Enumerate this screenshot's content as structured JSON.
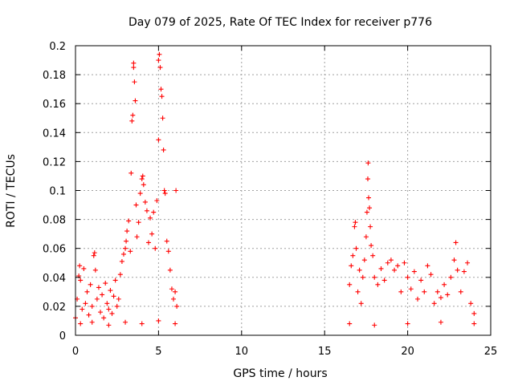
{
  "chart_data": {
    "type": "scatter",
    "title": "Day 079 of 2025, Rate Of TEC Index for receiver p776",
    "xlabel": "GPS time / hours",
    "ylabel": "ROTI / TECUs",
    "xlim": [
      0,
      25
    ],
    "ylim": [
      0,
      0.2
    ],
    "xticks": [
      0,
      5,
      10,
      15,
      20,
      25
    ],
    "xtick_labels": [
      "0",
      "5",
      "10",
      "15",
      "20",
      "25"
    ],
    "yticks": [
      0,
      0.02,
      0.04,
      0.06,
      0.08,
      0.1,
      0.12,
      0.14,
      0.16,
      0.18,
      0.2
    ],
    "ytick_labels": [
      "0",
      "0.02",
      "0.04",
      "0.06",
      "0.08",
      "0.1",
      "0.12",
      "0.14",
      "0.16",
      "0.18",
      "0.2"
    ],
    "grid": true,
    "marker": "+",
    "color": "#ff0000",
    "series": [
      {
        "name": "ROTI",
        "points": [
          [
            0.0,
            0.012
          ],
          [
            0.1,
            0.025
          ],
          [
            0.2,
            0.041
          ],
          [
            0.25,
            0.048
          ],
          [
            0.3,
            0.038
          ],
          [
            0.4,
            0.018
          ],
          [
            0.5,
            0.046
          ],
          [
            0.6,
            0.022
          ],
          [
            0.7,
            0.03
          ],
          [
            0.8,
            0.014
          ],
          [
            0.9,
            0.035
          ],
          [
            1.0,
            0.02
          ],
          [
            1.1,
            0.055
          ],
          [
            1.15,
            0.057
          ],
          [
            1.2,
            0.045
          ],
          [
            1.3,
            0.025
          ],
          [
            1.4,
            0.033
          ],
          [
            1.5,
            0.016
          ],
          [
            1.6,
            0.028
          ],
          [
            1.7,
            0.012
          ],
          [
            1.8,
            0.036
          ],
          [
            1.9,
            0.022
          ],
          [
            2.0,
            0.018
          ],
          [
            2.1,
            0.031
          ],
          [
            2.2,
            0.015
          ],
          [
            2.3,
            0.027
          ],
          [
            2.4,
            0.038
          ],
          [
            2.5,
            0.02
          ],
          [
            2.6,
            0.025
          ],
          [
            2.7,
            0.042
          ],
          [
            2.8,
            0.051
          ],
          [
            2.9,
            0.056
          ],
          [
            3.0,
            0.06
          ],
          [
            3.05,
            0.065
          ],
          [
            3.1,
            0.072
          ],
          [
            3.2,
            0.079
          ],
          [
            3.3,
            0.058
          ],
          [
            3.35,
            0.112
          ],
          [
            3.4,
            0.148
          ],
          [
            3.45,
            0.152
          ],
          [
            3.5,
            0.185
          ],
          [
            3.5,
            0.188
          ],
          [
            3.55,
            0.175
          ],
          [
            3.6,
            0.162
          ],
          [
            3.65,
            0.09
          ],
          [
            3.7,
            0.068
          ],
          [
            3.8,
            0.078
          ],
          [
            3.9,
            0.098
          ],
          [
            4.0,
            0.108
          ],
          [
            4.05,
            0.11
          ],
          [
            4.1,
            0.104
          ],
          [
            4.2,
            0.092
          ],
          [
            4.3,
            0.086
          ],
          [
            4.4,
            0.064
          ],
          [
            4.5,
            0.081
          ],
          [
            4.6,
            0.07
          ],
          [
            4.7,
            0.085
          ],
          [
            4.8,
            0.06
          ],
          [
            4.9,
            0.093
          ],
          [
            5.0,
            0.135
          ],
          [
            5.0,
            0.19
          ],
          [
            5.05,
            0.194
          ],
          [
            5.1,
            0.185
          ],
          [
            5.15,
            0.17
          ],
          [
            5.2,
            0.165
          ],
          [
            5.25,
            0.15
          ],
          [
            5.3,
            0.128
          ],
          [
            5.35,
            0.1
          ],
          [
            5.4,
            0.098
          ],
          [
            5.5,
            0.065
          ],
          [
            5.6,
            0.058
          ],
          [
            5.7,
            0.045
          ],
          [
            5.8,
            0.032
          ],
          [
            5.9,
            0.025
          ],
          [
            6.0,
            0.03
          ],
          [
            6.05,
            0.1
          ],
          [
            6.1,
            0.02
          ],
          [
            0.3,
            0.008
          ],
          [
            1.0,
            0.009
          ],
          [
            2.0,
            0.007
          ],
          [
            3.0,
            0.009
          ],
          [
            4.0,
            0.008
          ],
          [
            5.0,
            0.01
          ],
          [
            6.0,
            0.008
          ],
          [
            16.5,
            0.035
          ],
          [
            16.6,
            0.048
          ],
          [
            16.7,
            0.055
          ],
          [
            16.8,
            0.075
          ],
          [
            16.85,
            0.078
          ],
          [
            16.9,
            0.06
          ],
          [
            17.0,
            0.03
          ],
          [
            17.1,
            0.045
          ],
          [
            17.2,
            0.022
          ],
          [
            17.3,
            0.04
          ],
          [
            17.4,
            0.052
          ],
          [
            17.5,
            0.068
          ],
          [
            17.55,
            0.085
          ],
          [
            17.6,
            0.108
          ],
          [
            17.62,
            0.119
          ],
          [
            17.65,
            0.095
          ],
          [
            17.7,
            0.088
          ],
          [
            17.75,
            0.075
          ],
          [
            17.8,
            0.062
          ],
          [
            17.9,
            0.055
          ],
          [
            18.0,
            0.04
          ],
          [
            18.2,
            0.035
          ],
          [
            18.4,
            0.046
          ],
          [
            18.6,
            0.038
          ],
          [
            18.8,
            0.05
          ],
          [
            19.0,
            0.052
          ],
          [
            19.2,
            0.045
          ],
          [
            19.4,
            0.048
          ],
          [
            19.6,
            0.03
          ],
          [
            19.8,
            0.05
          ],
          [
            20.0,
            0.04
          ],
          [
            20.2,
            0.032
          ],
          [
            20.4,
            0.044
          ],
          [
            20.6,
            0.025
          ],
          [
            20.8,
            0.038
          ],
          [
            21.0,
            0.03
          ],
          [
            21.2,
            0.048
          ],
          [
            21.4,
            0.042
          ],
          [
            21.6,
            0.022
          ],
          [
            21.8,
            0.03
          ],
          [
            22.0,
            0.026
          ],
          [
            22.2,
            0.035
          ],
          [
            22.4,
            0.028
          ],
          [
            22.6,
            0.04
          ],
          [
            22.8,
            0.052
          ],
          [
            22.9,
            0.064
          ],
          [
            23.0,
            0.045
          ],
          [
            23.2,
            0.03
          ],
          [
            23.4,
            0.044
          ],
          [
            23.6,
            0.05
          ],
          [
            23.8,
            0.022
          ],
          [
            24.0,
            0.015
          ],
          [
            16.5,
            0.008
          ],
          [
            18.0,
            0.007
          ],
          [
            20.0,
            0.008
          ],
          [
            22.0,
            0.009
          ],
          [
            24.0,
            0.008
          ]
        ]
      }
    ]
  }
}
